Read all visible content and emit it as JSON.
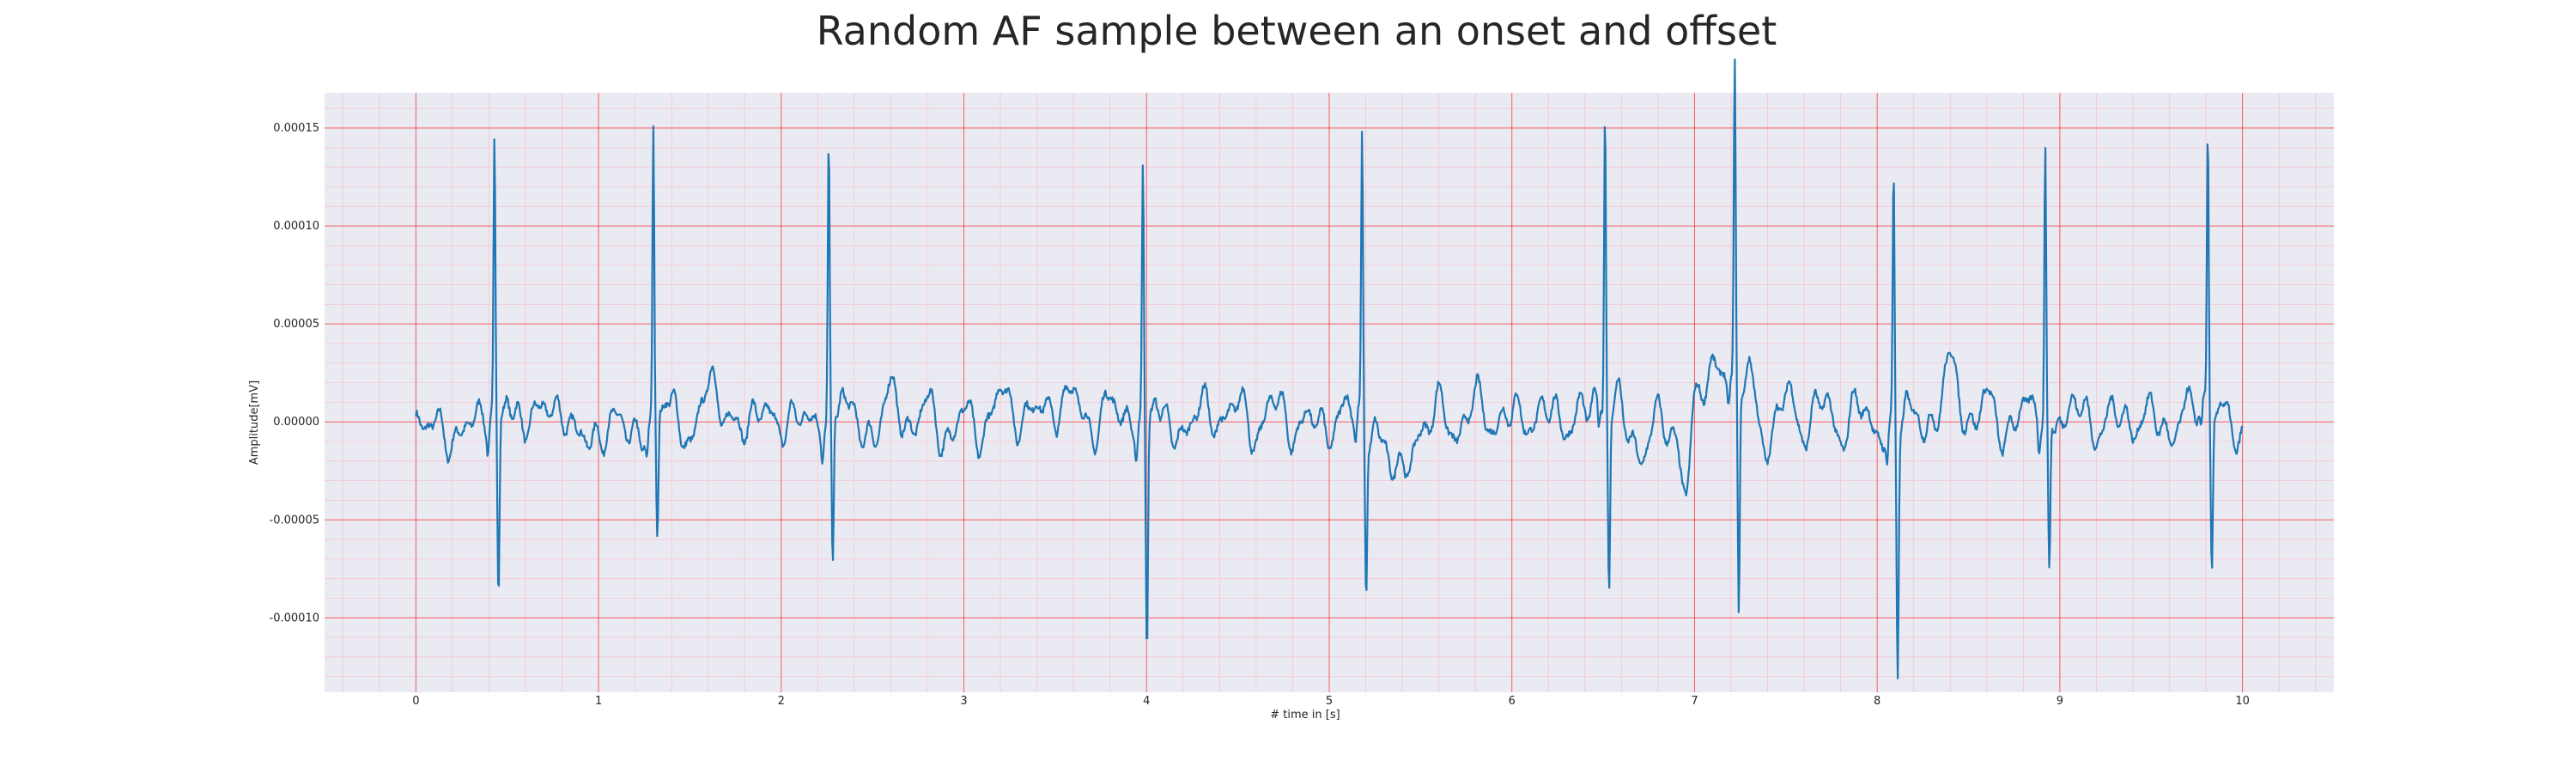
{
  "chart_data": {
    "type": "line",
    "title": "Random AF sample between an onset and offset",
    "xlabel": "# time in [s]",
    "ylabel": "Amplitude[mV]",
    "xlim": [
      -0.5,
      10.5
    ],
    "ylim": [
      -0.000138,
      0.000168
    ],
    "xticks": [
      0,
      1,
      2,
      3,
      4,
      5,
      6,
      7,
      8,
      9,
      10
    ],
    "xtick_labels": [
      "0",
      "1",
      "2",
      "3",
      "4",
      "5",
      "6",
      "7",
      "8",
      "9",
      "10"
    ],
    "yticks": [
      0.00015,
      0.0001,
      5e-05,
      0.0,
      -5e-05,
      -0.0001
    ],
    "ytick_labels": [
      "0.00015",
      "0.00010",
      "0.00005",
      "0.00000",
      "-0.00005",
      "-0.00010"
    ],
    "grid": true,
    "minor_grid": true,
    "colors": {
      "line": "#1f77b4",
      "background": "#eaeaf2",
      "major_grid": "#ff0000",
      "minor_grid": "#ffb6c1",
      "text": "#262626"
    },
    "series": [
      {
        "beats": [
          {
            "t": 0.43,
            "r": 0.000137,
            "s": -9.5e-05
          },
          {
            "t": 1.3,
            "r": 0.000148,
            "s": -6.2e-05
          },
          {
            "t": 2.26,
            "r": 0.000135,
            "s": -8e-05
          },
          {
            "t": 3.98,
            "r": 0.000126,
            "s": -0.000123
          },
          {
            "t": 5.18,
            "r": 0.000141,
            "s": -8.1e-05
          },
          {
            "t": 6.51,
            "r": 0.000155,
            "s": -9.1e-05
          },
          {
            "t": 7.22,
            "r": 0.000156,
            "s": -0.000121
          },
          {
            "t": 8.09,
            "r": 0.000126,
            "s": -0.000124
          },
          {
            "t": 8.92,
            "r": 0.000136,
            "s": -8.2e-05
          },
          {
            "t": 9.81,
            "r": 0.000143,
            "s": -7.8e-05
          }
        ],
        "baseline_points": [
          [
            0.0,
            -3e-06
          ],
          [
            0.1,
            1e-06
          ],
          [
            0.2,
            -1.2e-05
          ],
          [
            0.3,
            2e-06
          ],
          [
            0.5,
            4e-06
          ],
          [
            0.6,
            -1e-06
          ],
          [
            0.7,
            9e-06
          ],
          [
            0.8,
            3e-06
          ],
          [
            0.9,
            -6e-06
          ],
          [
            1.0,
            -1e-05
          ],
          [
            1.1,
            3e-06
          ],
          [
            1.2,
            -8e-06
          ],
          [
            1.4,
            7e-06
          ],
          [
            1.5,
            -1.2e-05
          ],
          [
            1.6,
            2.2e-05
          ],
          [
            1.7,
            2e-06
          ],
          [
            1.8,
            -3e-06
          ],
          [
            1.9,
            8e-06
          ],
          [
            2.0,
            -4e-06
          ],
          [
            2.1,
            5e-06
          ],
          [
            2.2,
            -2e-06
          ],
          [
            2.35,
            8e-06
          ],
          [
            2.5,
            -1e-05
          ],
          [
            2.6,
            1.8e-05
          ],
          [
            2.7,
            -7e-06
          ],
          [
            2.8,
            1.2e-05
          ],
          [
            2.9,
            -1.3e-05
          ],
          [
            3.0,
            8e-06
          ],
          [
            3.1,
            -1e-05
          ],
          [
            3.2,
            1.9e-05
          ],
          [
            3.3,
            -2e-06
          ],
          [
            3.4,
            1e-05
          ],
          [
            3.5,
            3e-06
          ],
          [
            3.6,
            1.8e-05
          ],
          [
            3.7,
            -8e-06
          ],
          [
            3.8,
            1.3e-05
          ],
          [
            3.9,
            -2e-06
          ],
          [
            4.05,
            4e-06
          ],
          [
            4.2,
            -8e-06
          ],
          [
            4.3,
            1.1e-05
          ],
          [
            4.4,
            -3e-06
          ],
          [
            4.5,
            1.3e-05
          ],
          [
            4.6,
            -1e-05
          ],
          [
            4.7,
            1.5e-05
          ],
          [
            4.8,
            -8e-06
          ],
          [
            4.9,
            5e-06
          ],
          [
            5.0,
            -7e-06
          ],
          [
            5.1,
            1e-05
          ],
          [
            5.25,
            -1e-05
          ],
          [
            5.4,
            -2.5e-05
          ],
          [
            5.5,
            -8e-06
          ],
          [
            5.6,
            1.1e-05
          ],
          [
            5.7,
            -1e-05
          ],
          [
            5.8,
            1.5e-05
          ],
          [
            5.9,
            -5e-06
          ],
          [
            6.0,
            8e-06
          ],
          [
            6.1,
            -3e-06
          ],
          [
            6.2,
            1e-05
          ],
          [
            6.3,
            -5e-06
          ],
          [
            6.4,
            1e-05
          ],
          [
            6.6,
            5e-06
          ],
          [
            6.7,
            -2e-05
          ],
          [
            6.8,
            5e-06
          ],
          [
            6.9,
            -1.2e-05
          ],
          [
            6.95,
            -3.5e-05
          ],
          [
            7.0,
            1e-05
          ],
          [
            7.1,
            2.7e-05
          ],
          [
            7.3,
            2e-05
          ],
          [
            7.4,
            -1.5e-05
          ],
          [
            7.5,
            1.8e-05
          ],
          [
            7.6,
            -8e-06
          ],
          [
            7.7,
            1.5e-05
          ],
          [
            7.8,
            -1e-05
          ],
          [
            7.9,
            1.2e-05
          ],
          [
            8.0,
            -8e-06
          ],
          [
            8.2,
            3e-06
          ],
          [
            8.3,
            -5e-06
          ],
          [
            8.4,
            3.3e-05
          ],
          [
            8.5,
            -5e-06
          ],
          [
            8.6,
            1.5e-05
          ],
          [
            8.7,
            -1e-05
          ],
          [
            8.8,
            1e-05
          ],
          [
            9.0,
            -5e-06
          ],
          [
            9.1,
            1.2e-05
          ],
          [
            9.2,
            -8e-06
          ],
          [
            9.3,
            8e-06
          ],
          [
            9.4,
            -5e-06
          ],
          [
            9.5,
            8e-06
          ],
          [
            9.6,
            -1e-05
          ],
          [
            9.7,
            1e-05
          ],
          [
            9.9,
            2e-06
          ],
          [
            10.0,
            -1e-05
          ]
        ]
      }
    ]
  }
}
